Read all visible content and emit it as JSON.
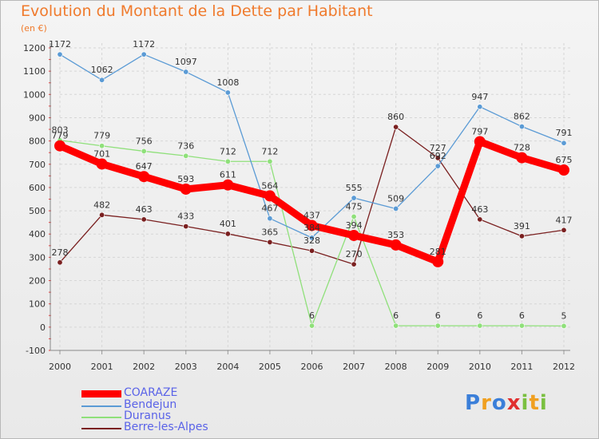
{
  "title": "Evolution du Montant de la Dette par Habitant",
  "subtitle": "(en €)",
  "logo_text": "Proxiti",
  "chart_data": {
    "type": "line",
    "title": "Evolution du Montant de la Dette par Habitant",
    "ylabel": "(en €)",
    "x": [
      "2000",
      "2001",
      "2002",
      "2003",
      "2004",
      "2005",
      "2006",
      "2007",
      "2008",
      "2009",
      "2010",
      "2011",
      "2012"
    ],
    "ylim": [
      -100,
      1200
    ],
    "yticks": [
      -100,
      0,
      100,
      200,
      300,
      400,
      500,
      600,
      700,
      800,
      900,
      1000,
      1100,
      1200
    ],
    "grid": true,
    "legend_position": "bottom-left",
    "series": [
      {
        "name": "COARAZE",
        "color": "#ff0000",
        "values": [
          779,
          701,
          647,
          593,
          611,
          564,
          437,
          394,
          353,
          281,
          797,
          728,
          675
        ]
      },
      {
        "name": "Bendejun",
        "color": "#5b9bd5",
        "values": [
          1172,
          1062,
          1172,
          1097,
          1008,
          467,
          384,
          555,
          509,
          692,
          947,
          862,
          791
        ]
      },
      {
        "name": "Duranus",
        "color": "#8fe07a",
        "values": [
          803,
          779,
          756,
          736,
          712,
          712,
          6,
          475,
          6,
          6,
          6,
          6,
          5
        ]
      },
      {
        "name": "Berre-les-Alpes",
        "color": "#7a2020",
        "values": [
          278,
          482,
          463,
          433,
          401,
          365,
          328,
          270,
          860,
          727,
          463,
          391,
          417
        ]
      }
    ]
  }
}
